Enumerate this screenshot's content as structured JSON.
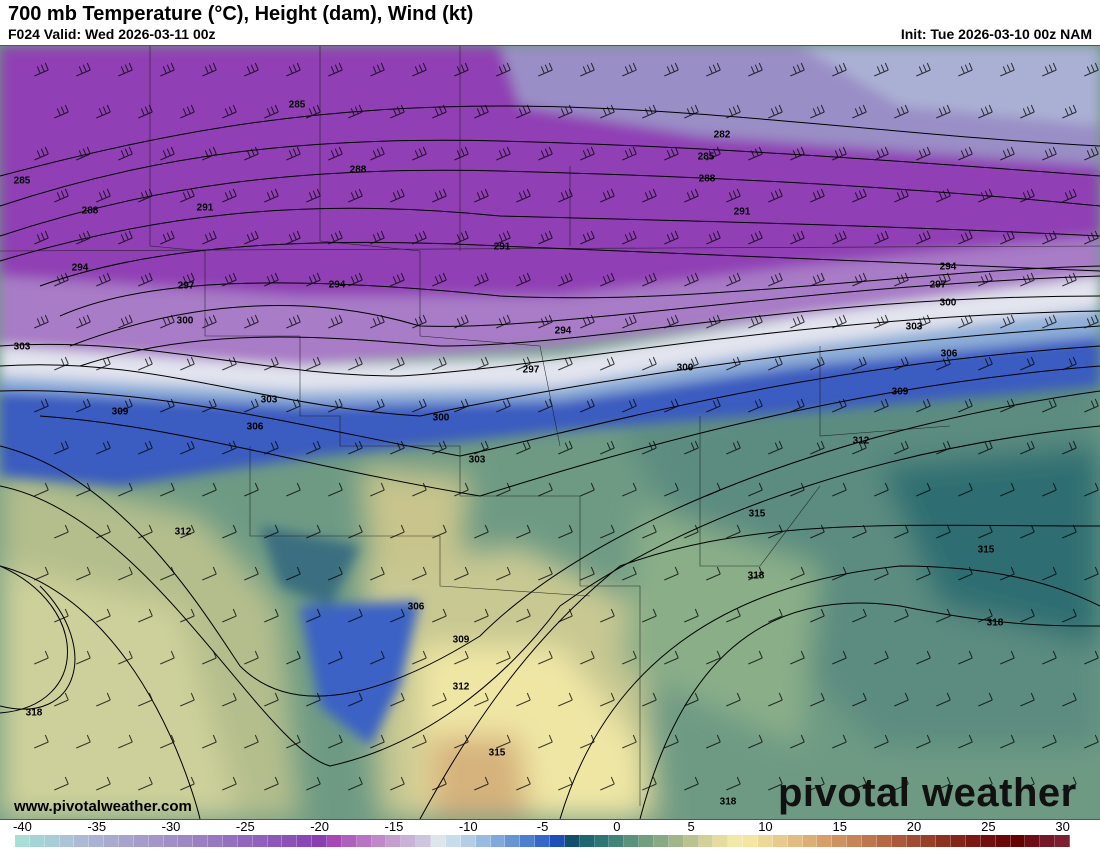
{
  "header": {
    "title": "700 mb Temperature (°C), Height (dam), Wind (kt)",
    "valid": "F024 Valid: Wed 2026-03-11 00z",
    "init": "Init: Tue 2026-03-10 00z NAM"
  },
  "map": {
    "contour_labels": [
      "285",
      "285",
      "288",
      "288",
      "288",
      "291",
      "291",
      "291",
      "282",
      "285",
      "294",
      "294",
      "294",
      "294",
      "297",
      "297",
      "297",
      "300",
      "300",
      "300",
      "300",
      "303",
      "303",
      "303",
      "303",
      "306",
      "306",
      "306",
      "309",
      "309",
      "309",
      "312",
      "312",
      "312",
      "315",
      "315",
      "315",
      "318",
      "318",
      "318",
      "318"
    ],
    "watermark_url": "www.pivotalweather.com",
    "logo": "pivotal weather"
  },
  "colorbar": {
    "units": "°C",
    "min": -40,
    "max": 31,
    "tick_labels": [
      "-40",
      "-35",
      "-30",
      "-25",
      "-20",
      "-15",
      "-10",
      "-5",
      "0",
      "5",
      "10",
      "15",
      "20",
      "25",
      "30"
    ],
    "colors": [
      "#a8ddd8",
      "#a6d4d6",
      "#a8cdd6",
      "#abc4d6",
      "#adbad6",
      "#aab2d4",
      "#a8aad0",
      "#a6a4cc",
      "#a69ccb",
      "#a496c8",
      "#a08ec6",
      "#9e88c4",
      "#9a80c2",
      "#9878c0",
      "#9470be",
      "#9266bc",
      "#9060ba",
      "#8e58b8",
      "#8c50b6",
      "#8a46b4",
      "#8a3eb2",
      "#a848b4",
      "#b060bc",
      "#b874c2",
      "#c088c8",
      "#c49ecf",
      "#c8b2d8",
      "#ccc6de",
      "#dde6ec",
      "#c8dcec",
      "#b4cce6",
      "#9abbe0",
      "#80a8da",
      "#6894d2",
      "#4e7ecc",
      "#3666c6",
      "#1e4eb8",
      "#12506a",
      "#1e6670",
      "#2e7674",
      "#448478",
      "#5a927c",
      "#729e80",
      "#8aa884",
      "#a2b48a",
      "#bac290",
      "#d2cf98",
      "#e6dca0",
      "#f2e8a8",
      "#f4e6a0",
      "#eed898",
      "#e8ca8c",
      "#e2bc80",
      "#dcae76",
      "#d6a06c",
      "#ce9262",
      "#c68458",
      "#be764e",
      "#b46844",
      "#aa5a3a",
      "#a04c32",
      "#964028",
      "#8c3220",
      "#82261a",
      "#7a1a14",
      "#70100e",
      "#6a0808",
      "#640000",
      "#6c0c14",
      "#741828",
      "#7a2030"
    ]
  }
}
